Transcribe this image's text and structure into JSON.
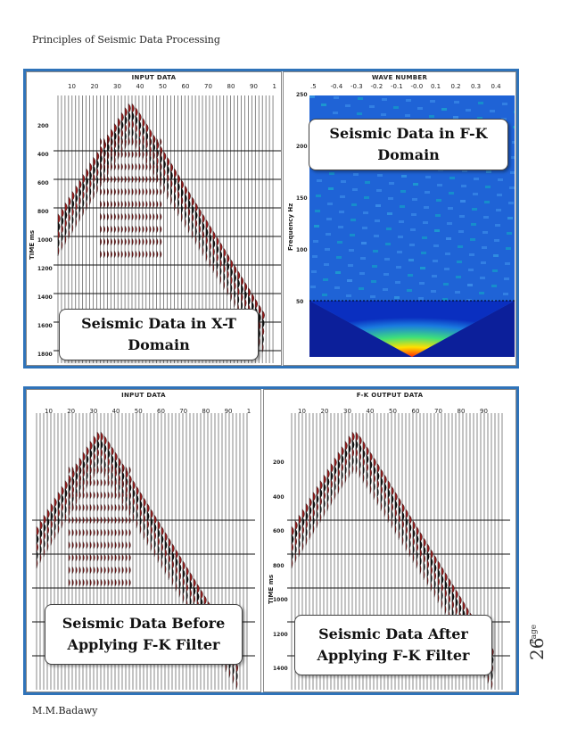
{
  "header": {
    "title": "Principles of Seismic Data Processing"
  },
  "footer": {
    "author": "M.M.Badawy"
  },
  "page": {
    "label": "Page",
    "number": "26"
  },
  "figure_top": {
    "input_panel": {
      "title": "INPUT DATA",
      "x_ticks": [
        "10",
        "20",
        "30",
        "40",
        "50",
        "60",
        "70",
        "80",
        "90",
        "1"
      ],
      "y_ticks": [
        "200",
        "400",
        "600",
        "800",
        "1000",
        "1200",
        "1400",
        "1600",
        "1800"
      ],
      "y_label": "TIME ms",
      "callout": "Seismic Data in X-T\nDomain"
    },
    "fk_panel": {
      "title": "WAVE NUMBER",
      "x_ticks": [
        ".5",
        "-0.4",
        "-0.3",
        "-0.2",
        "-0.1",
        "-0.0",
        "0.1",
        "0.2",
        "0.3",
        "0.4"
      ],
      "y_ticks": [
        "250",
        "200",
        "150",
        "100",
        "50"
      ],
      "y_label": "Frequency Hz",
      "callout": "Seismic Data in F-K\nDomain"
    }
  },
  "figure_bottom": {
    "input_panel": {
      "title": "INPUT DATA",
      "x_ticks": [
        "10",
        "20",
        "30",
        "40",
        "50",
        "60",
        "70",
        "80",
        "90",
        "1"
      ],
      "callout": "Seismic Data Before\nApplying F-K Filter"
    },
    "output_panel": {
      "title": "F-K OUTPUT DATA",
      "x_ticks": [
        "10",
        "20",
        "30",
        "40",
        "50",
        "60",
        "70",
        "80",
        "90"
      ],
      "y_ticks": [
        "200",
        "400",
        "600",
        "800",
        "1000",
        "1200",
        "1400"
      ],
      "y_label": "TIME ms",
      "callout": "Seismic Data After\nApplying F-K Filter"
    }
  }
}
